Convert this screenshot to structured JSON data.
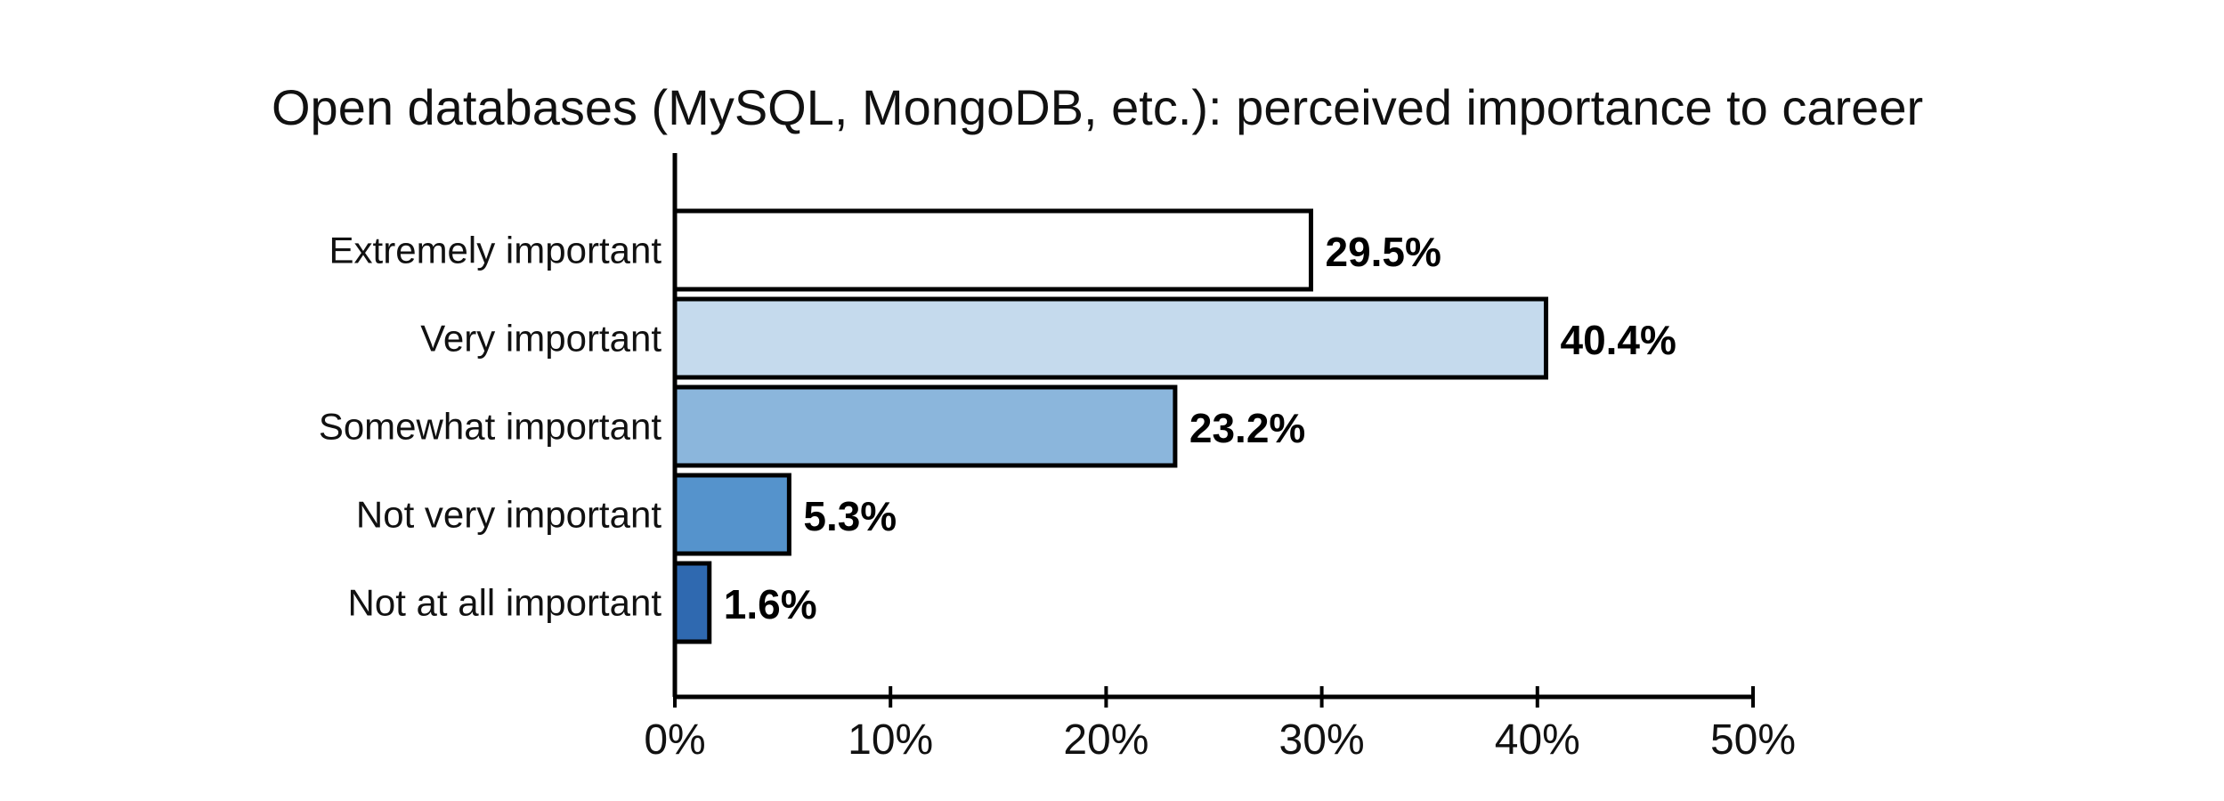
{
  "chart_data": {
    "type": "bar",
    "orientation": "horizontal",
    "title": "Open databases (MySQL, MongoDB, etc.): perceived importance to career",
    "categories": [
      "Extremely important",
      "Very important",
      "Somewhat important",
      "Not very important",
      "Not at all important"
    ],
    "values": [
      29.5,
      40.4,
      23.2,
      5.3,
      1.6
    ],
    "value_labels": [
      "29.5%",
      "40.4%",
      "23.2%",
      "5.3%",
      "1.6%"
    ],
    "bar_colors": [
      "#ffffff",
      "#c5daed",
      "#8bb6dc",
      "#5593cc",
      "#2f69b0"
    ],
    "xlim": [
      0,
      50
    ],
    "xticks": [
      0,
      10,
      20,
      30,
      40,
      50
    ],
    "xtick_labels": [
      "0%",
      "10%",
      "20%",
      "30%",
      "40%",
      "50%"
    ],
    "xlabel": "",
    "ylabel": "",
    "grid": false,
    "legend": "none"
  }
}
